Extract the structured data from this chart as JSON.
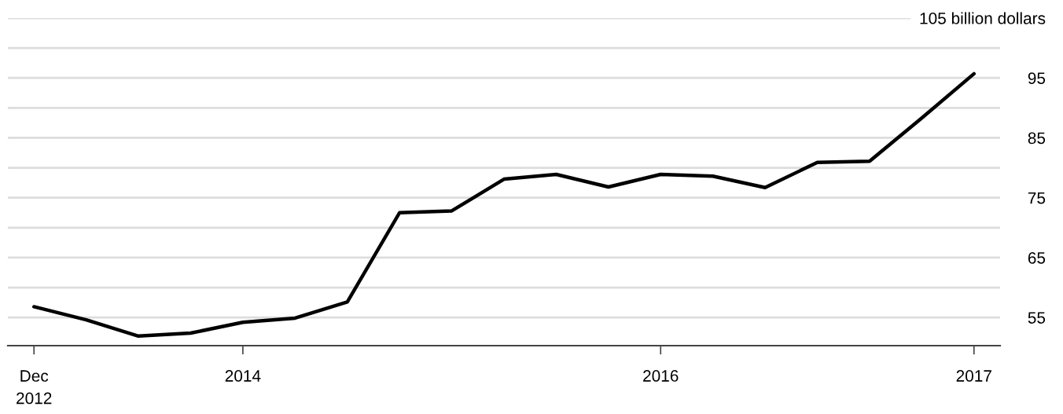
{
  "chart_data": {
    "type": "line",
    "categories": [
      "Dec\n2012",
      null,
      null,
      null,
      "2014",
      null,
      null,
      null,
      null,
      null,
      null,
      null,
      "2016",
      null,
      null,
      null,
      null,
      null,
      "2017"
    ],
    "series": [
      {
        "color": "#000000",
        "values": [
          56.8,
          54.6,
          51.9,
          52.4,
          54.2,
          54.9,
          57.6,
          72.5,
          72.8,
          78.1,
          78.9,
          76.8,
          78.9,
          78.6,
          76.7,
          80.9,
          81.1,
          88.3,
          95.7
        ]
      }
    ],
    "ylim": [
      50.3,
      105
    ],
    "yticks": [
      55,
      {
        "value": 60,
        "label": null
      },
      65,
      {
        "value": 70,
        "label": null
      },
      75,
      {
        "value": 80,
        "label": null
      },
      85,
      {
        "value": 90,
        "label": null
      },
      95,
      {
        "value": 100,
        "label": null
      },
      {
        "value": 105,
        "label": "105 billion dollars"
      }
    ],
    "grid": "y",
    "marker": "none",
    "line_style": "solid"
  }
}
